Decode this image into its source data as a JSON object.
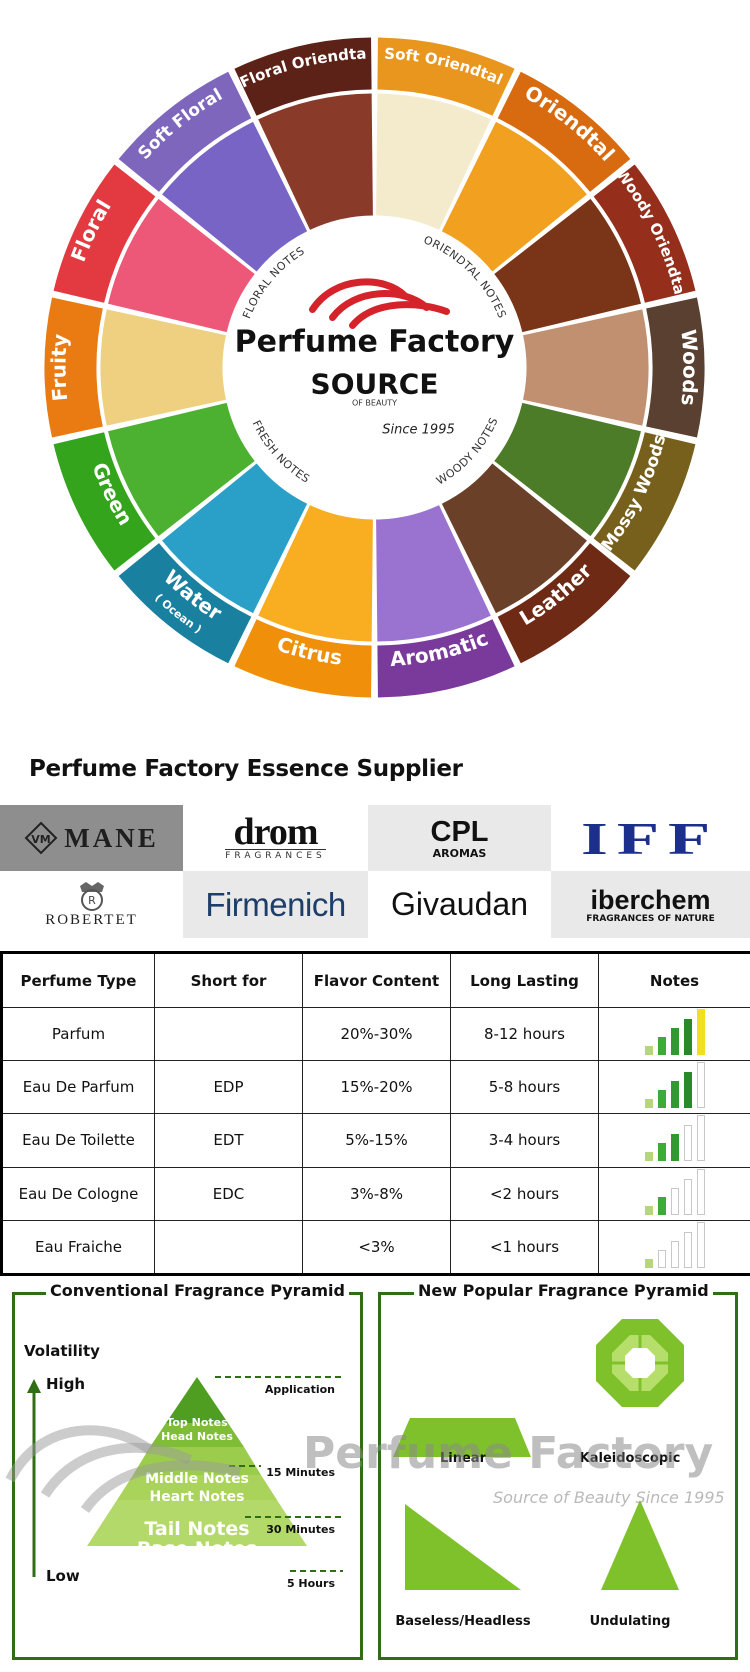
{
  "wheel": {
    "center_title": "Perfume Factory",
    "brand": "SOURCE",
    "brand_sub": "OF BEAUTY",
    "since": "Since 1995",
    "note_groups": [
      "FLORAL NOTES",
      "ORIENDTAL NOTES",
      "WOODY NOTES",
      "FRESH NOTES"
    ],
    "segments": [
      {
        "label": "Soft Oriendtal",
        "color": "#e8961e"
      },
      {
        "label": "Oriendtal",
        "color": "#d86a10"
      },
      {
        "label": "Woody Oriendtal",
        "color": "#962e1c"
      },
      {
        "label": "Woods",
        "color": "#5a4030"
      },
      {
        "label": "Mossy Woods",
        "color": "#77601c"
      },
      {
        "label": "Leather",
        "color": "#6e2a14"
      },
      {
        "label": "Aromatic",
        "color": "#7a3a9c"
      },
      {
        "label": "Citrus",
        "color": "#f0900a"
      },
      {
        "label": "Water",
        "sub": "( Ocean )",
        "color": "#1a80a0"
      },
      {
        "label": "Green",
        "color": "#34a41c"
      },
      {
        "label": "Fruity",
        "color": "#ea7a12"
      },
      {
        "label": "Floral",
        "color": "#e23a40"
      },
      {
        "label": "Soft Floral",
        "color": "#7e66bc"
      },
      {
        "label": "Floral Oriendtal",
        "color": "#5c2218"
      }
    ],
    "photo_colors": [
      "#f4ebcd",
      "#f2a020",
      "#7a3518",
      "#c09070",
      "#4c7c28",
      "#6a4028",
      "#9a72d0",
      "#f8ae20",
      "#2aa0c8",
      "#4cb030",
      "#eed080",
      "#ee5878",
      "#7864c4",
      "#8a3a28"
    ]
  },
  "suppliers": {
    "heading": "Perfume Factory Essence Supplier",
    "logos": [
      {
        "name": "MANE",
        "icon": "mane-monogram-icon"
      },
      {
        "name": "drom",
        "sub": "FRAGRANCES"
      },
      {
        "name": "CPL",
        "sub": "AROMAS"
      },
      {
        "name": "IFF"
      },
      {
        "name": "ROBERTET",
        "icon": "robertet-crest-icon"
      },
      {
        "name": "Firmenich"
      },
      {
        "name": "Givaudan"
      },
      {
        "name": "iberchem",
        "sub": "FRAGRANCES OF NATURE"
      }
    ]
  },
  "table": {
    "headers": [
      "Perfume Type",
      "Short for",
      "Flavor Content",
      "Long Lasting",
      "Notes"
    ],
    "rows": [
      {
        "type": "Parfum",
        "short": "",
        "content": "20%-30%",
        "lasting": "8-12 hours",
        "level": 5
      },
      {
        "type": "Eau De Parfum",
        "short": "EDP",
        "content": "15%-20%",
        "lasting": "5-8 hours",
        "level": 4
      },
      {
        "type": "Eau De Toilette",
        "short": "EDT",
        "content": "5%-15%",
        "lasting": "3-4 hours",
        "level": 3
      },
      {
        "type": "Eau De Cologne",
        "short": "EDC",
        "content": "3%-8%",
        "lasting": "<2 hours",
        "level": 2
      },
      {
        "type": "Eau Fraiche",
        "short": "",
        "content": "<3%",
        "lasting": "<1 hours",
        "level": 1
      }
    ],
    "bar_colors": [
      "#b5d77a",
      "#3daa3a",
      "#2e9a30",
      "#2a8a2a",
      "#f0e020"
    ]
  },
  "conventional": {
    "title": "Conventional Fragrance Pyramid",
    "volatility": "Volatility",
    "high": "High",
    "low": "Low",
    "top": [
      "Top Notes",
      "Head Notes"
    ],
    "middle": [
      "Middle Notes",
      "Heart Notes"
    ],
    "base": [
      "Tail Notes",
      "Base Notes"
    ],
    "times": [
      "Application",
      "15 Minutes",
      "30 Minutes",
      "5 Hours"
    ]
  },
  "popular": {
    "title": "New Popular Fragrance Pyramid",
    "shapes": [
      "Linear",
      "Kaleidoscopic",
      "Baseless/Headless",
      "Undulating"
    ]
  },
  "watermark": {
    "title": "Perfume Factory",
    "sub": "Source of Beauty Since 1995"
  },
  "colors": {
    "pyramid_border": "#2f6e14",
    "pyramid_green": "#9ccc4c",
    "shape_green": "#7ec12a"
  }
}
